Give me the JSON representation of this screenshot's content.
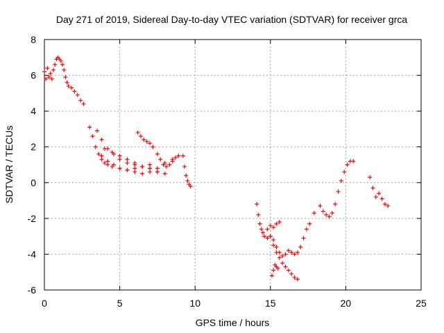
{
  "chart_data": {
    "type": "scatter",
    "title": "Day 271 of 2019, Sidereal Day-to-day VTEC variation (SDTVAR) for receiver grca",
    "xlabel": "GPS time / hours",
    "ylabel": "SDTVAR / TECUs",
    "xlim": [
      0,
      25
    ],
    "ylim": [
      -6,
      8
    ],
    "xticks": [
      0,
      5,
      10,
      15,
      20,
      25
    ],
    "yticks": [
      -6,
      -4,
      -2,
      0,
      2,
      4,
      6,
      8
    ],
    "xtick_labels": [
      "0",
      "5",
      "10",
      "15",
      "20",
      "25"
    ],
    "ytick_labels": [
      "-6",
      "-4",
      "-2",
      "0",
      "2",
      "4",
      "6",
      "8"
    ],
    "grid": true,
    "marker": "plus",
    "color": "#ff0000",
    "series": [
      {
        "name": "trace-1",
        "x": [
          0.0,
          0.1,
          0.2,
          0.3,
          0.4,
          0.5,
          0.6,
          0.7,
          0.8,
          0.9,
          1.0,
          1.1,
          1.2,
          1.3,
          1.4,
          1.5,
          1.6,
          1.8,
          2.0,
          2.2,
          2.4,
          2.6
        ],
        "y": [
          6.2,
          5.8,
          6.4,
          5.9,
          6.1,
          5.8,
          6.3,
          6.6,
          6.9,
          7.0,
          6.9,
          6.8,
          6.6,
          6.3,
          5.9,
          5.6,
          5.4,
          5.3,
          5.1,
          4.9,
          4.6,
          4.4
        ]
      },
      {
        "name": "trace-2",
        "x": [
          3.0,
          3.2,
          3.4,
          3.6,
          3.8,
          4.0,
          4.2,
          4.5,
          5.0,
          5.5,
          6.0,
          6.5,
          7.0,
          7.5,
          8.0,
          8.5,
          8.9
        ],
        "y": [
          3.1,
          2.6,
          2.0,
          1.6,
          1.3,
          1.1,
          1.0,
          0.9,
          0.8,
          0.7,
          0.6,
          0.5,
          0.6,
          0.8,
          1.1,
          1.3,
          1.5
        ]
      },
      {
        "name": "trace-3",
        "x": [
          3.5,
          3.8,
          4.2,
          4.6,
          5.0,
          5.5,
          6.0,
          6.5,
          7.0,
          7.5,
          8.0
        ],
        "y": [
          2.9,
          2.4,
          1.9,
          1.6,
          1.3,
          1.1,
          1.0,
          0.9,
          0.8,
          0.6,
          0.5
        ]
      },
      {
        "name": "trace-4",
        "x": [
          3.8,
          4.2,
          4.6,
          5.0,
          5.5,
          6.0,
          6.5,
          7.0
        ],
        "y": [
          1.5,
          1.2,
          1.0,
          0.8,
          0.7,
          0.8,
          0.9,
          1.0
        ]
      },
      {
        "name": "trace-5",
        "x": [
          4.0,
          4.5,
          5.0,
          5.5,
          6.0,
          6.5,
          7.0,
          7.5
        ],
        "y": [
          1.9,
          1.7,
          1.5,
          1.3,
          1.1,
          0.9,
          0.8,
          0.6
        ]
      },
      {
        "name": "trace-6",
        "x": [
          6.2,
          6.4,
          6.6,
          6.8,
          7.0,
          7.2
        ],
        "y": [
          2.8,
          2.6,
          2.4,
          2.3,
          2.2,
          2.0
        ]
      },
      {
        "name": "trace-7",
        "x": [
          7.5,
          7.7,
          7.9,
          8.1,
          8.3,
          8.5,
          8.7
        ],
        "y": [
          1.6,
          1.3,
          1.0,
          0.9,
          1.0,
          1.2,
          1.4
        ]
      },
      {
        "name": "trace-8",
        "x": [
          9.2,
          9.3,
          9.4,
          9.5,
          9.6,
          9.7
        ],
        "y": [
          1.5,
          0.9,
          0.4,
          0.1,
          -0.1,
          -0.2
        ]
      },
      {
        "name": "trace-9",
        "x": [
          14.1,
          14.2,
          14.3,
          14.4,
          14.5,
          14.6,
          14.8,
          15.0,
          15.2,
          15.4,
          15.6,
          15.8,
          16.0,
          16.2,
          16.4,
          16.6,
          16.8,
          17.0,
          17.2,
          17.4,
          17.6
        ],
        "y": [
          -1.2,
          -1.8,
          -2.3,
          -2.6,
          -2.8,
          -3.0,
          -3.1,
          -3.0,
          -3.2,
          -3.6,
          -3.9,
          -4.1,
          -4.0,
          -3.8,
          -3.9,
          -4.0,
          -3.9,
          -3.6,
          -3.1,
          -2.6,
          -2.3
        ]
      },
      {
        "name": "trace-10",
        "x": [
          14.8,
          15.0,
          15.2,
          15.4,
          15.6
        ],
        "y": [
          -2.6,
          -2.4,
          -2.5,
          -2.3,
          -2.2
        ]
      },
      {
        "name": "trace-11",
        "x": [
          15.0,
          15.2,
          15.4,
          15.6,
          15.8,
          16.0,
          16.2,
          16.4,
          16.6,
          16.8
        ],
        "y": [
          -3.0,
          -3.5,
          -3.9,
          -4.2,
          -4.5,
          -4.7,
          -4.9,
          -5.1,
          -5.3,
          -5.4
        ]
      },
      {
        "name": "trace-12",
        "x": [
          15.1,
          15.2,
          15.3,
          15.4,
          15.5
        ],
        "y": [
          -5.2,
          -4.9,
          -4.6,
          -4.7,
          -4.8
        ]
      },
      {
        "name": "trace-13",
        "x": [
          17.9,
          18.3,
          18.5,
          18.7,
          18.9,
          19.1,
          19.3,
          19.5,
          19.7,
          19.9,
          20.1,
          20.3,
          20.5
        ],
        "y": [
          -1.7,
          -1.3,
          -1.6,
          -1.8,
          -1.9,
          -1.7,
          -1.2,
          -0.5,
          0.1,
          0.6,
          1.0,
          1.2,
          1.2
        ]
      },
      {
        "name": "trace-14",
        "x": [
          21.6,
          21.8,
          22.0,
          22.2,
          22.4,
          22.6,
          22.8
        ],
        "y": [
          0.3,
          -0.3,
          -0.8,
          -0.6,
          -0.9,
          -1.2,
          -1.3
        ]
      }
    ]
  }
}
